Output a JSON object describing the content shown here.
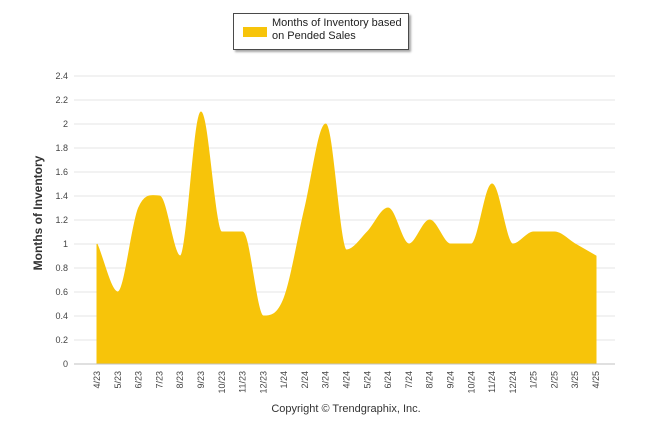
{
  "chart_data": {
    "type": "area",
    "legend": {
      "label": "Months of Inventory based on Pended Sales",
      "position": "top-center"
    },
    "ylabel": "Months of Inventory",
    "xlabel": "",
    "ylim": [
      0,
      2.4
    ],
    "yticks": [
      "0",
      "0.2",
      "0.4",
      "0.6",
      "0.8",
      "1",
      "1.2",
      "1.4",
      "1.6",
      "1.8",
      "2",
      "2.2",
      "2.4"
    ],
    "categories": [
      "4/23",
      "5/23",
      "6/23",
      "7/23",
      "8/23",
      "9/23",
      "10/23",
      "11/23",
      "12/23",
      "1/24",
      "2/24",
      "3/24",
      "4/24",
      "5/24",
      "6/24",
      "7/24",
      "8/24",
      "9/24",
      "10/24",
      "11/24",
      "12/24",
      "1/25",
      "2/25",
      "3/25",
      "4/25"
    ],
    "series": [
      {
        "name": "Months of Inventory based on Pended Sales",
        "values": [
          1.0,
          0.6,
          1.3,
          1.4,
          0.9,
          2.1,
          1.1,
          1.1,
          0.4,
          0.55,
          1.3,
          2.0,
          0.95,
          1.1,
          1.3,
          1.0,
          1.2,
          1.0,
          1.0,
          1.5,
          1.0,
          1.1,
          1.1,
          1.0,
          0.9
        ]
      }
    ],
    "grid": true
  },
  "colors": {
    "series": "#f7c40a",
    "grid": "#e6e6e6",
    "axis": "#c0c0c0"
  },
  "footer": {
    "copyright": "Copyright © Trendgraphix, Inc."
  }
}
